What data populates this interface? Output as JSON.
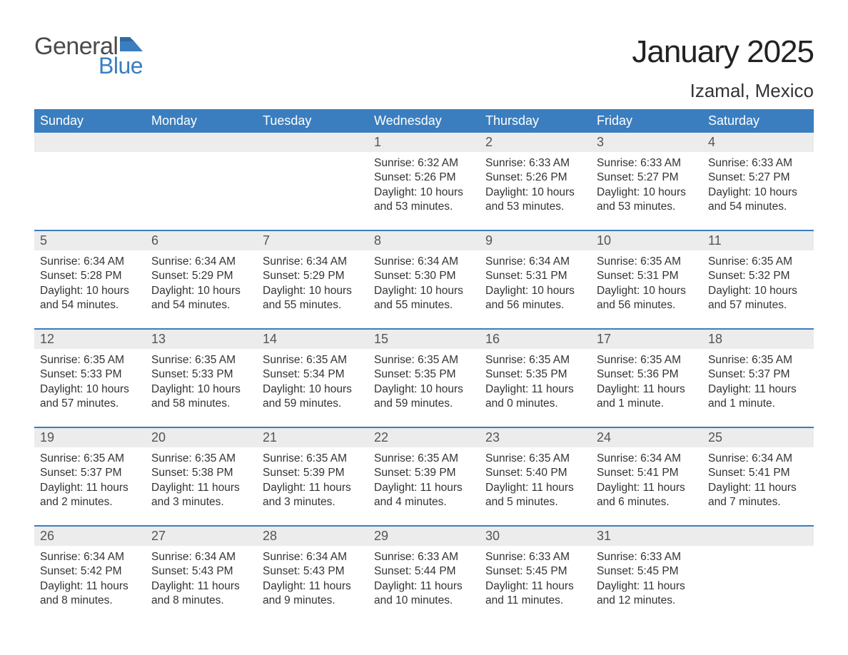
{
  "brand": {
    "word1": "General",
    "word2": "Blue",
    "flag_color": "#3a7ebf"
  },
  "colors": {
    "header_bg": "#3a7ebf",
    "header_text": "#ffffff",
    "daynum_bg": "#ececec",
    "daynum_text": "#555555",
    "body_text": "#333333",
    "week_divider": "#3a7ebf",
    "page_bg": "#ffffff"
  },
  "typography": {
    "title_fontsize_pt": 33,
    "location_fontsize_pt": 20,
    "dow_fontsize_pt": 14,
    "daynum_fontsize_pt": 14,
    "body_fontsize_pt": 12
  },
  "title": "January 2025",
  "location": "Izamal, Mexico",
  "days_of_week": [
    "Sunday",
    "Monday",
    "Tuesday",
    "Wednesday",
    "Thursday",
    "Friday",
    "Saturday"
  ],
  "calendar": {
    "type": "table",
    "columns": 7,
    "rows": 5,
    "leading_blanks": 3,
    "trailing_blanks": 1
  },
  "days": [
    {
      "n": "1",
      "sunrise": "6:32 AM",
      "sunset": "5:26 PM",
      "daylight": "10 hours and 53 minutes."
    },
    {
      "n": "2",
      "sunrise": "6:33 AM",
      "sunset": "5:26 PM",
      "daylight": "10 hours and 53 minutes."
    },
    {
      "n": "3",
      "sunrise": "6:33 AM",
      "sunset": "5:27 PM",
      "daylight": "10 hours and 53 minutes."
    },
    {
      "n": "4",
      "sunrise": "6:33 AM",
      "sunset": "5:27 PM",
      "daylight": "10 hours and 54 minutes."
    },
    {
      "n": "5",
      "sunrise": "6:34 AM",
      "sunset": "5:28 PM",
      "daylight": "10 hours and 54 minutes."
    },
    {
      "n": "6",
      "sunrise": "6:34 AM",
      "sunset": "5:29 PM",
      "daylight": "10 hours and 54 minutes."
    },
    {
      "n": "7",
      "sunrise": "6:34 AM",
      "sunset": "5:29 PM",
      "daylight": "10 hours and 55 minutes."
    },
    {
      "n": "8",
      "sunrise": "6:34 AM",
      "sunset": "5:30 PM",
      "daylight": "10 hours and 55 minutes."
    },
    {
      "n": "9",
      "sunrise": "6:34 AM",
      "sunset": "5:31 PM",
      "daylight": "10 hours and 56 minutes."
    },
    {
      "n": "10",
      "sunrise": "6:35 AM",
      "sunset": "5:31 PM",
      "daylight": "10 hours and 56 minutes."
    },
    {
      "n": "11",
      "sunrise": "6:35 AM",
      "sunset": "5:32 PM",
      "daylight": "10 hours and 57 minutes."
    },
    {
      "n": "12",
      "sunrise": "6:35 AM",
      "sunset": "5:33 PM",
      "daylight": "10 hours and 57 minutes."
    },
    {
      "n": "13",
      "sunrise": "6:35 AM",
      "sunset": "5:33 PM",
      "daylight": "10 hours and 58 minutes."
    },
    {
      "n": "14",
      "sunrise": "6:35 AM",
      "sunset": "5:34 PM",
      "daylight": "10 hours and 59 minutes."
    },
    {
      "n": "15",
      "sunrise": "6:35 AM",
      "sunset": "5:35 PM",
      "daylight": "10 hours and 59 minutes."
    },
    {
      "n": "16",
      "sunrise": "6:35 AM",
      "sunset": "5:35 PM",
      "daylight": "11 hours and 0 minutes."
    },
    {
      "n": "17",
      "sunrise": "6:35 AM",
      "sunset": "5:36 PM",
      "daylight": "11 hours and 1 minute."
    },
    {
      "n": "18",
      "sunrise": "6:35 AM",
      "sunset": "5:37 PM",
      "daylight": "11 hours and 1 minute."
    },
    {
      "n": "19",
      "sunrise": "6:35 AM",
      "sunset": "5:37 PM",
      "daylight": "11 hours and 2 minutes."
    },
    {
      "n": "20",
      "sunrise": "6:35 AM",
      "sunset": "5:38 PM",
      "daylight": "11 hours and 3 minutes."
    },
    {
      "n": "21",
      "sunrise": "6:35 AM",
      "sunset": "5:39 PM",
      "daylight": "11 hours and 3 minutes."
    },
    {
      "n": "22",
      "sunrise": "6:35 AM",
      "sunset": "5:39 PM",
      "daylight": "11 hours and 4 minutes."
    },
    {
      "n": "23",
      "sunrise": "6:35 AM",
      "sunset": "5:40 PM",
      "daylight": "11 hours and 5 minutes."
    },
    {
      "n": "24",
      "sunrise": "6:34 AM",
      "sunset": "5:41 PM",
      "daylight": "11 hours and 6 minutes."
    },
    {
      "n": "25",
      "sunrise": "6:34 AM",
      "sunset": "5:41 PM",
      "daylight": "11 hours and 7 minutes."
    },
    {
      "n": "26",
      "sunrise": "6:34 AM",
      "sunset": "5:42 PM",
      "daylight": "11 hours and 8 minutes."
    },
    {
      "n": "27",
      "sunrise": "6:34 AM",
      "sunset": "5:43 PM",
      "daylight": "11 hours and 8 minutes."
    },
    {
      "n": "28",
      "sunrise": "6:34 AM",
      "sunset": "5:43 PM",
      "daylight": "11 hours and 9 minutes."
    },
    {
      "n": "29",
      "sunrise": "6:33 AM",
      "sunset": "5:44 PM",
      "daylight": "11 hours and 10 minutes."
    },
    {
      "n": "30",
      "sunrise": "6:33 AM",
      "sunset": "5:45 PM",
      "daylight": "11 hours and 11 minutes."
    },
    {
      "n": "31",
      "sunrise": "6:33 AM",
      "sunset": "5:45 PM",
      "daylight": "11 hours and 12 minutes."
    }
  ],
  "labels": {
    "sunrise": "Sunrise: ",
    "sunset": "Sunset: ",
    "daylight": "Daylight: "
  }
}
